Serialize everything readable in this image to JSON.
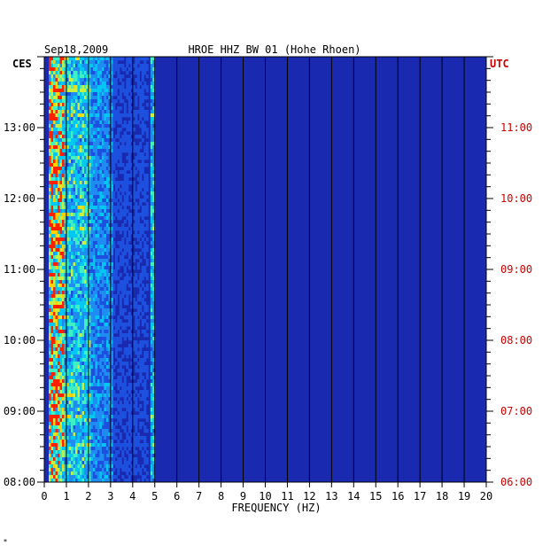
{
  "chart_data": {
    "type": "heatmap",
    "title": "HROE HHZ BW 01 (Hohe Rhoen)",
    "date": "Sep18,2009",
    "xlabel": "FREQUENCY (HZ)",
    "xlim": [
      0,
      20
    ],
    "x_ticks": [
      "0",
      "1",
      "2",
      "3",
      "4",
      "5",
      "6",
      "7",
      "8",
      "9",
      "10",
      "11",
      "12",
      "13",
      "14",
      "15",
      "16",
      "17",
      "18",
      "19",
      "20"
    ],
    "left_axis": {
      "label": "CES",
      "color": "#000000"
    },
    "right_axis": {
      "label": "UTC",
      "color": "#cc0000"
    },
    "time_range_ces_hours": [
      8.0,
      14.0
    ],
    "left_ticks": [
      {
        "hour": 13,
        "label": "13:00"
      },
      {
        "hour": 12,
        "label": "12:00"
      },
      {
        "hour": 11,
        "label": "11:00"
      },
      {
        "hour": 10,
        "label": "10:00"
      },
      {
        "hour": 9,
        "label": "09:00"
      },
      {
        "hour": 8,
        "label": "08:00"
      }
    ],
    "right_ticks": [
      {
        "hour": 13,
        "label": "11:00"
      },
      {
        "hour": 12,
        "label": "10:00"
      },
      {
        "hour": 11,
        "label": "09:00"
      },
      {
        "hour": 10,
        "label": "08:00"
      },
      {
        "hour": 9,
        "label": "07:00"
      },
      {
        "hour": 8,
        "label": "06:00"
      }
    ],
    "colors": {
      "background": "#1a2ab0",
      "vertical_grid": "#000000",
      "low": "#1a30c0",
      "mid": "#00c8ff",
      "high": "#ffff00",
      "peak": "#ff2000"
    },
    "band_energy": [
      {
        "freq_from": 0.2,
        "freq_to": 0.9,
        "level": 0.85
      },
      {
        "freq_from": 0.9,
        "freq_to": 2.1,
        "level": 0.6
      },
      {
        "freq_from": 2.1,
        "freq_to": 3.1,
        "level": 0.4
      },
      {
        "freq_from": 3.1,
        "freq_to": 4.7,
        "level": 0.2
      },
      {
        "freq_from": 4.8,
        "freq_to": 5.0,
        "level": 0.55
      },
      {
        "freq_from": 5.0,
        "freq_to": 20.0,
        "level": 0.05
      }
    ],
    "vertical_grid": true
  },
  "footer_mark": "*"
}
